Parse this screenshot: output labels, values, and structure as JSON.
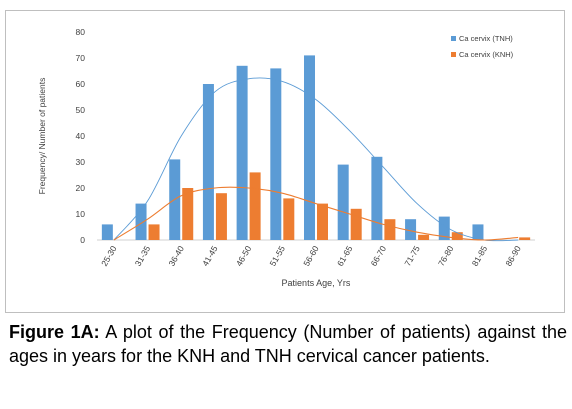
{
  "chart_data": {
    "type": "bar",
    "ylabel": "Frequency/ Number  of patients",
    "xlabel": "Patients  Age, Yrs",
    "ylim": [
      0,
      80
    ],
    "yticks": [
      0,
      10,
      20,
      30,
      40,
      50,
      60,
      70,
      80
    ],
    "grid": false,
    "legend_position": "top-right",
    "categories": [
      "25-30",
      "31-35",
      "36-40",
      "41-45",
      "46-50",
      "51-55",
      "56-60",
      "61-65",
      "66-70",
      "71-75",
      "76-80",
      "81-85",
      "86-90"
    ],
    "series": [
      {
        "name": "Ca cervix (TNH)",
        "color": "#5b9bd5",
        "values": [
          6,
          14,
          31,
          60,
          67,
          66,
          71,
          29,
          32,
          8,
          9,
          6,
          0
        ],
        "trendline": [
          0,
          15,
          40,
          57,
          62,
          61,
          54,
          42,
          28,
          14,
          4,
          0,
          0
        ]
      },
      {
        "name": "Ca cervix (KNH)",
        "color": "#ed7d31",
        "values": [
          0,
          6,
          20,
          18,
          26,
          16,
          14,
          12,
          8,
          2,
          3,
          0,
          1
        ],
        "trendline": [
          0,
          8,
          17,
          20,
          20,
          18,
          14,
          10,
          6,
          3,
          1,
          0,
          1
        ]
      }
    ]
  },
  "caption": {
    "label": "Figure 1A:",
    "text": " A plot of the Frequency (Number of patients) against the ages in years for the KNH and TNH cervical cancer patients."
  }
}
